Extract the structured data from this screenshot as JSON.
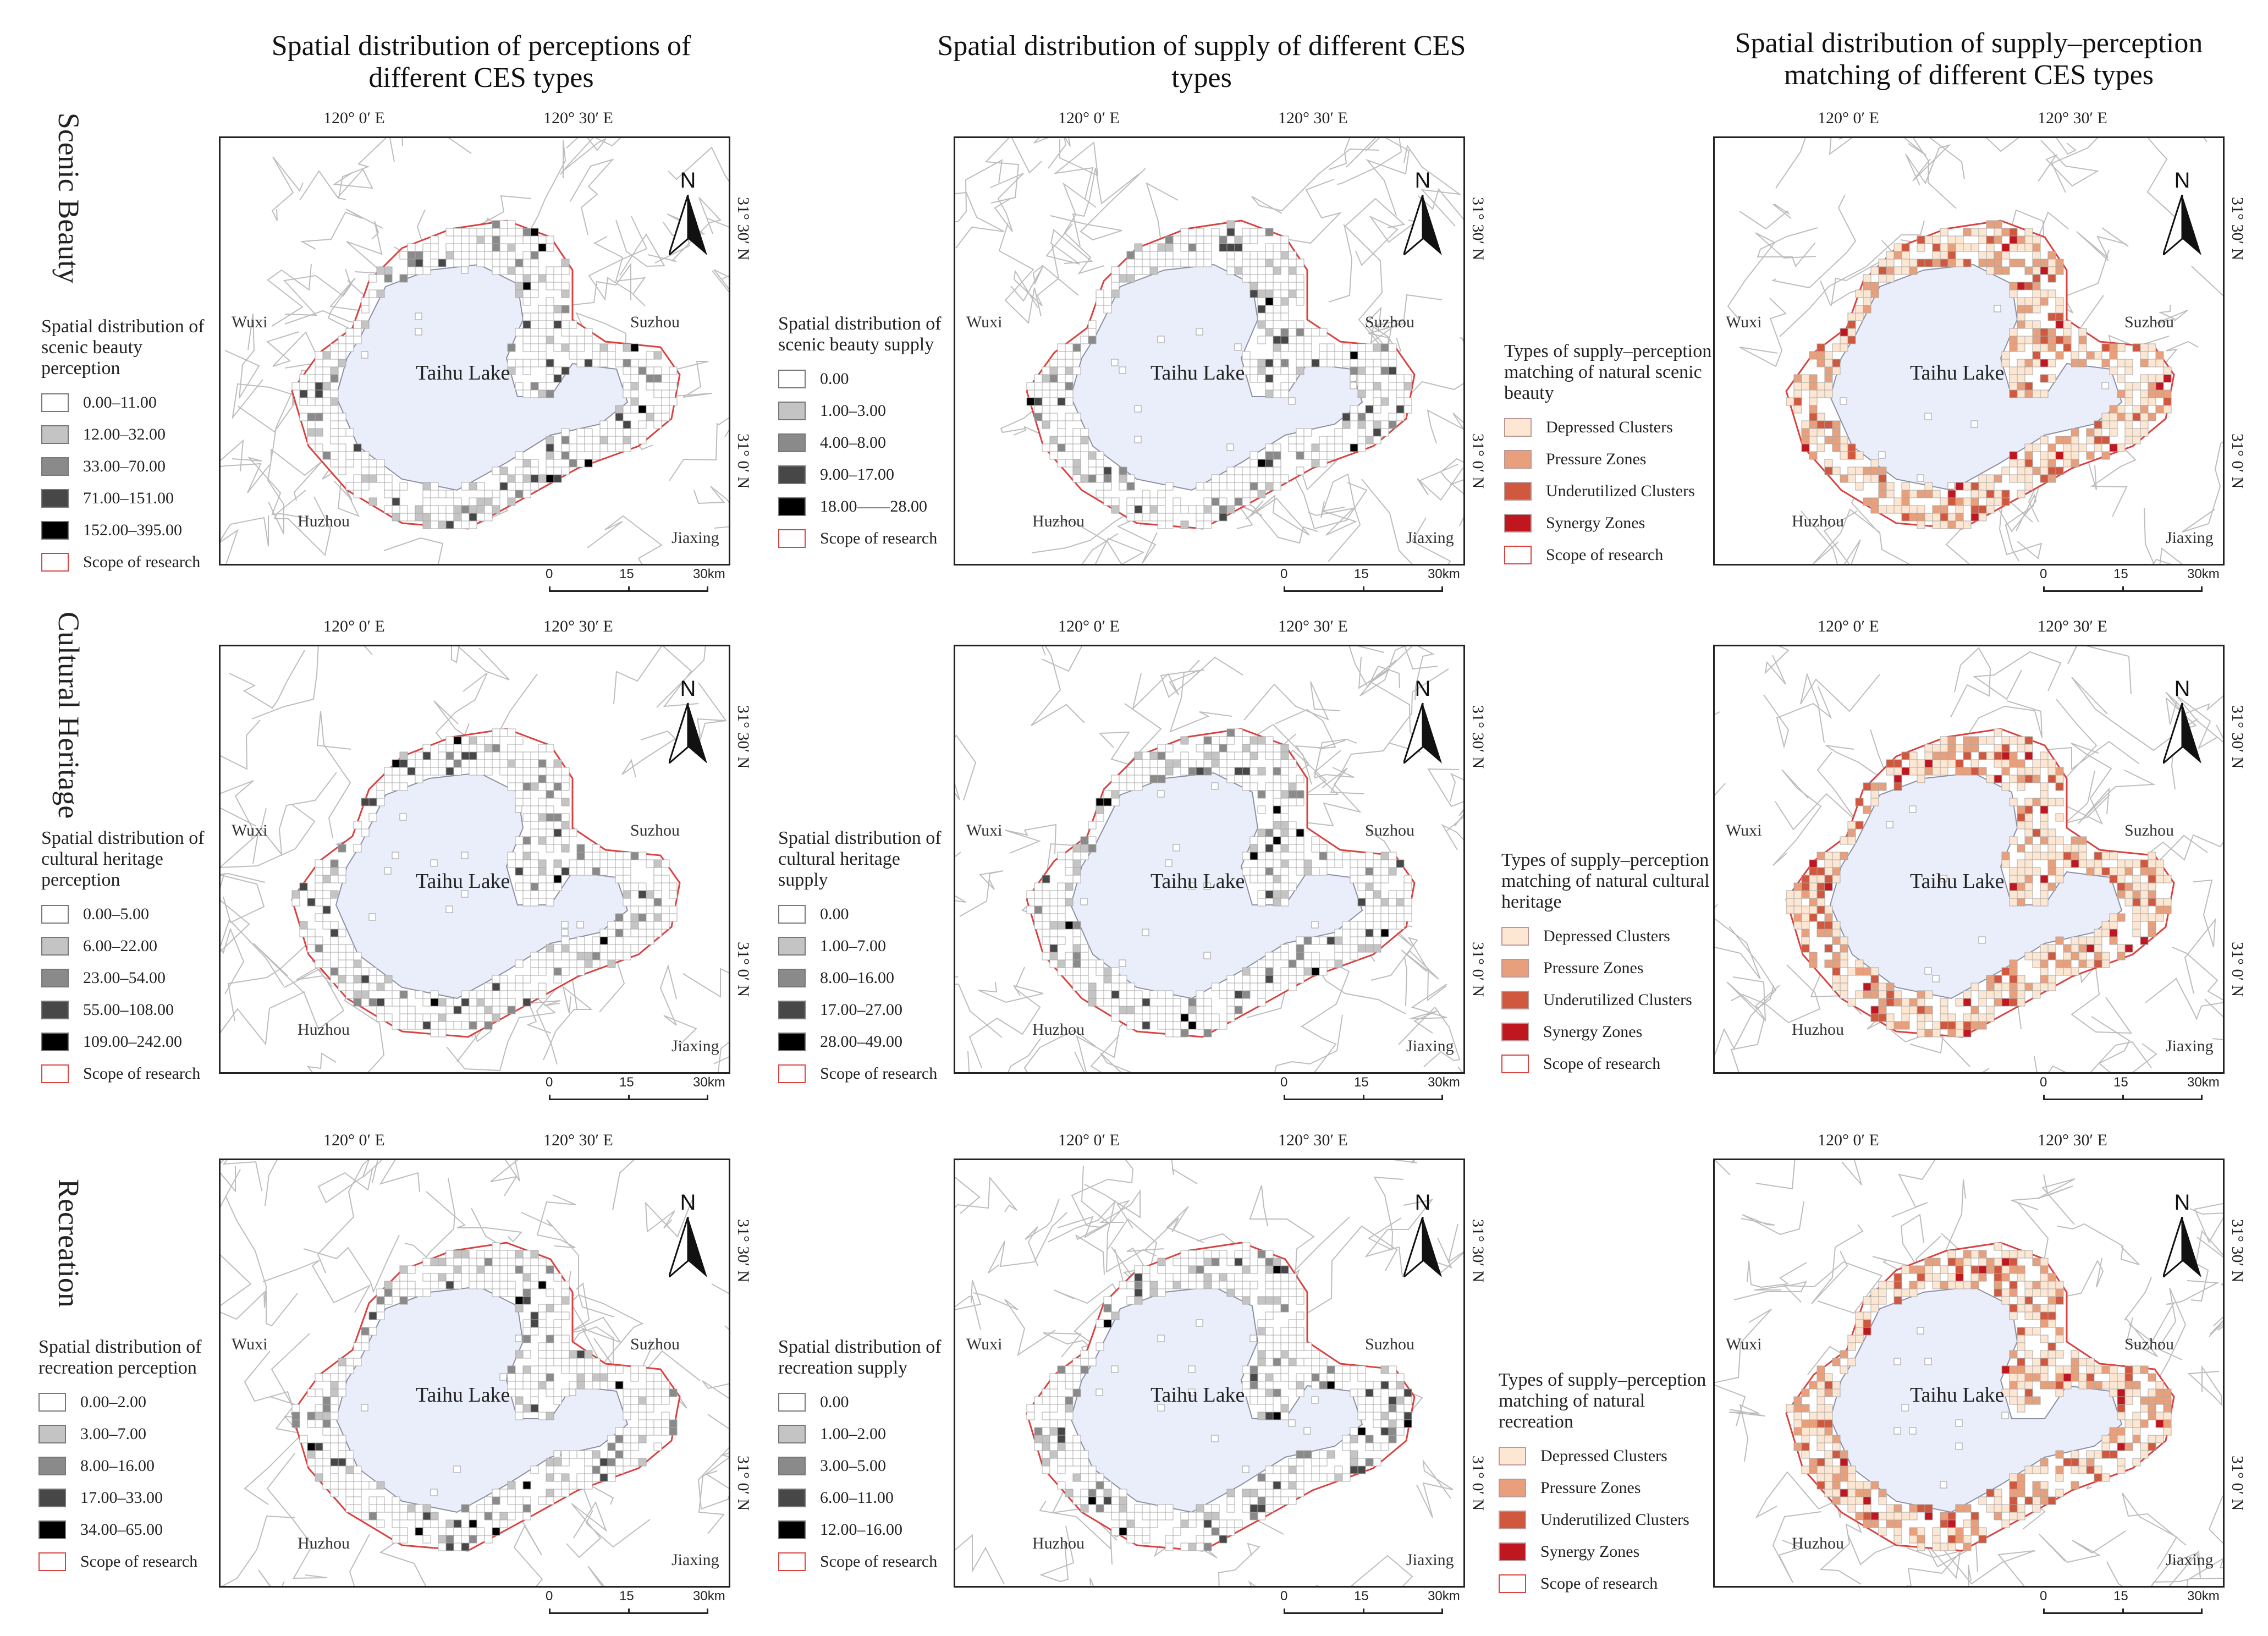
{
  "column_titles": [
    "Spatial distribution of perceptions of different CES types",
    "Spatial distribution of supply of different CES types",
    "Spatial distribution of supply–perception matching of different CES types"
  ],
  "row_labels": [
    "Scenic Beauty",
    "Cultural Heritage",
    "Recreation"
  ],
  "map_labels": {
    "lake": "Taihu Lake",
    "wuxi": "Wuxi",
    "suzhou": "Suzhou",
    "huzhou": "Huzhou",
    "jiaxing": "Jiaxing",
    "north": "N",
    "lon1": "120° 0′ E",
    "lon2": "120° 30′ E",
    "lat1": "31° 30′ N",
    "lat2": "31° 0′ N",
    "scale": [
      "0",
      "15",
      "30km"
    ]
  },
  "colors": {
    "lake": "#e9eefa",
    "boundary": "#d9423f",
    "grey": [
      "#ffffff",
      "#c4c4c4",
      "#8a8a8a",
      "#474747",
      "#000000"
    ],
    "match": [
      "#fde6d2",
      "#e8a07c",
      "#d0583f",
      "#c0161f"
    ]
  },
  "panels": {
    "r0c0": {
      "title": "Spatial distribution of scenic beauty perception",
      "items": [
        "0.00–11.00",
        "12.00–32.00",
        "33.00–70.00",
        "71.00–151.00",
        "152.00–395.00",
        "Scope of research"
      ]
    },
    "r0c1": {
      "title": "Spatial distribution of scenic beauty supply",
      "items": [
        "0.00",
        "1.00–3.00",
        "4.00–8.00",
        "9.00–17.00",
        "18.00——28.00",
        "Scope of research"
      ]
    },
    "r0c2": {
      "title": "Types of supply–perception matching of natural scenic beauty",
      "items": [
        "Depressed Clusters",
        "Pressure Zones",
        "Underutilized Clusters",
        "Synergy Zones",
        "Scope of research"
      ]
    },
    "r1c0": {
      "title": "Spatial distribution of cultural heritage perception",
      "items": [
        "0.00–5.00",
        "6.00–22.00",
        "23.00–54.00",
        "55.00–108.00",
        "109.00–242.00",
        "Scope of research"
      ]
    },
    "r1c1": {
      "title": "Spatial distribution of cultural heritage supply",
      "items": [
        "0.00",
        "1.00–7.00",
        "8.00–16.00",
        "17.00–27.00",
        "28.00–49.00",
        "Scope of research"
      ]
    },
    "r1c2": {
      "title": "Types of supply–perception matching of natural cultural heritage",
      "items": [
        "Depressed Clusters",
        "Pressure Zones",
        "Underutilized Clusters",
        "Synergy Zones",
        "Scope of research"
      ]
    },
    "r2c0": {
      "title": "Spatial distribution of recreation perception",
      "items": [
        "0.00–2.00",
        "3.00–7.00",
        "8.00–16.00",
        "17.00–33.00",
        "34.00–65.00",
        "Scope of research"
      ]
    },
    "r2c1": {
      "title": "Spatial distribution of recreation supply",
      "items": [
        "0.00",
        "1.00–2.00",
        "3.00–5.00",
        "6.00–11.00",
        "12.00–16.00",
        "Scope of research"
      ]
    },
    "r2c2": {
      "title": "Types of supply–perception matching of natural recreation",
      "items": [
        "Depressed Clusters",
        "Pressure Zones",
        "Underutilized Clusters",
        "Synergy Zones",
        "Scope of research"
      ]
    }
  }
}
